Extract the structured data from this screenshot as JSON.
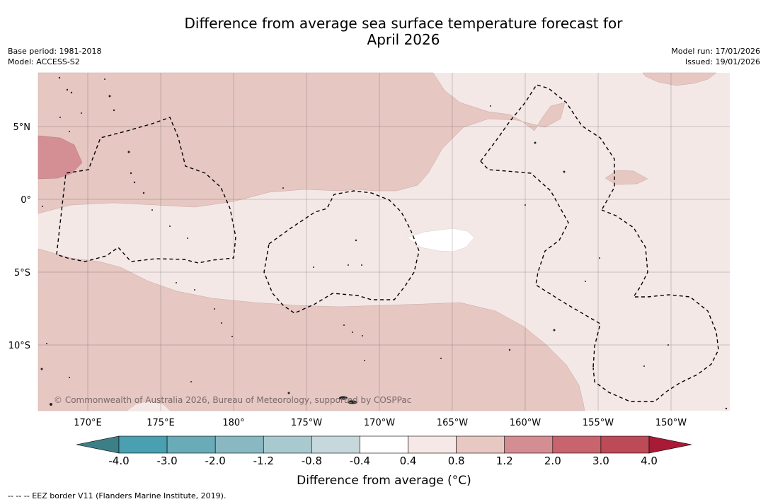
{
  "title_line1": "Difference from average sea surface temperature forecast for",
  "title_line2": "April 2026",
  "meta_left": {
    "base_period": "Base period: 1981-2018",
    "model": "Model: ACCESS-S2"
  },
  "meta_right": {
    "model_run": "Model run: 17/01/2026",
    "issued": "Issued: 19/01/2026"
  },
  "lat_labels": [
    "5°N",
    "0°",
    "5°S",
    "10°S"
  ],
  "lon_labels": [
    "170°E",
    "175°E",
    "180°",
    "175°W",
    "170°W",
    "165°W",
    "160°W",
    "155°W",
    "150°W"
  ],
  "copyright": "© Commonwealth of Australia 2026, Bureau of Meteorology, supported by COSPPac",
  "colorbar": {
    "ticks": [
      "-4.0",
      "-3.0",
      "-2.0",
      "-1.2",
      "-0.8",
      "-0.4",
      "0.4",
      "0.8",
      "1.2",
      "2.0",
      "3.0",
      "4.0"
    ],
    "colors": [
      "#4a9fb0",
      "#6aabb8",
      "#89b8c2",
      "#a8c9cd",
      "#c6d8dc",
      "#ffffff",
      "#f5e8e6",
      "#e8c8c3",
      "#d48d93",
      "#c8646e",
      "#bc4a57"
    ],
    "low_extend_color": "#3d7f86",
    "high_extend_color": "#a81a35",
    "label": "Difference from average ($^\\circ$C)",
    "label_display": "Difference from average (°C)"
  },
  "footer": "--  --  -- EEZ border V11 (Flanders Marine Institute, 2019).",
  "map_colors": {
    "light": "#f4e8e6",
    "medium": "#e6c7c2",
    "strong": "#d48f95",
    "neutral": "#ffffff"
  }
}
